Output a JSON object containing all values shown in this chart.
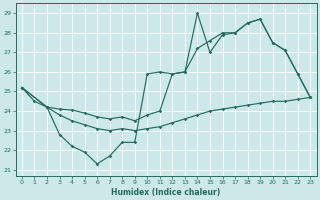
{
  "xlabel": "Humidex (Indice chaleur)",
  "xlim": [
    -0.5,
    23.5
  ],
  "ylim": [
    20.7,
    29.5
  ],
  "yticks": [
    21,
    22,
    23,
    24,
    25,
    26,
    27,
    28,
    29
  ],
  "xticks": [
    0,
    1,
    2,
    3,
    4,
    5,
    6,
    7,
    8,
    9,
    10,
    11,
    12,
    13,
    14,
    15,
    16,
    17,
    18,
    19,
    20,
    21,
    22,
    23
  ],
  "bg_color": "#cce8e8",
  "line_color": "#236b5e",
  "grid_color": "#ffffff",
  "line1_x": [
    0,
    1,
    2,
    3,
    4,
    5,
    6,
    7,
    8,
    9,
    10,
    11,
    12,
    13,
    14,
    15,
    16,
    17,
    18,
    19,
    20,
    21,
    22,
    23
  ],
  "line1_y": [
    25.2,
    24.5,
    24.2,
    22.8,
    22.2,
    21.9,
    21.3,
    21.7,
    22.4,
    22.4,
    25.9,
    26.0,
    25.9,
    26.0,
    29.0,
    27.0,
    27.9,
    28.0,
    28.5,
    28.7,
    27.5,
    27.1,
    25.9,
    24.7
  ],
  "line2_x": [
    0,
    2,
    3,
    4,
    5,
    6,
    7,
    8,
    9,
    10,
    11,
    12,
    13,
    14,
    15,
    16,
    17,
    18,
    19,
    20,
    21,
    22,
    23
  ],
  "line2_y": [
    25.2,
    24.2,
    24.1,
    24.05,
    23.9,
    23.7,
    23.6,
    23.7,
    23.5,
    23.8,
    24.0,
    25.9,
    26.0,
    27.2,
    27.6,
    28.0,
    28.0,
    28.5,
    28.7,
    27.5,
    27.1,
    25.9,
    24.7
  ],
  "line3_x": [
    0,
    2,
    3,
    4,
    5,
    6,
    7,
    8,
    9,
    10,
    11,
    12,
    13,
    14,
    15,
    16,
    17,
    18,
    19,
    20,
    21,
    22,
    23
  ],
  "line3_y": [
    25.2,
    24.2,
    23.8,
    23.5,
    23.3,
    23.1,
    23.0,
    23.1,
    23.0,
    23.1,
    23.2,
    23.4,
    23.6,
    23.8,
    24.0,
    24.1,
    24.2,
    24.3,
    24.4,
    24.5,
    24.5,
    24.6,
    24.7
  ]
}
